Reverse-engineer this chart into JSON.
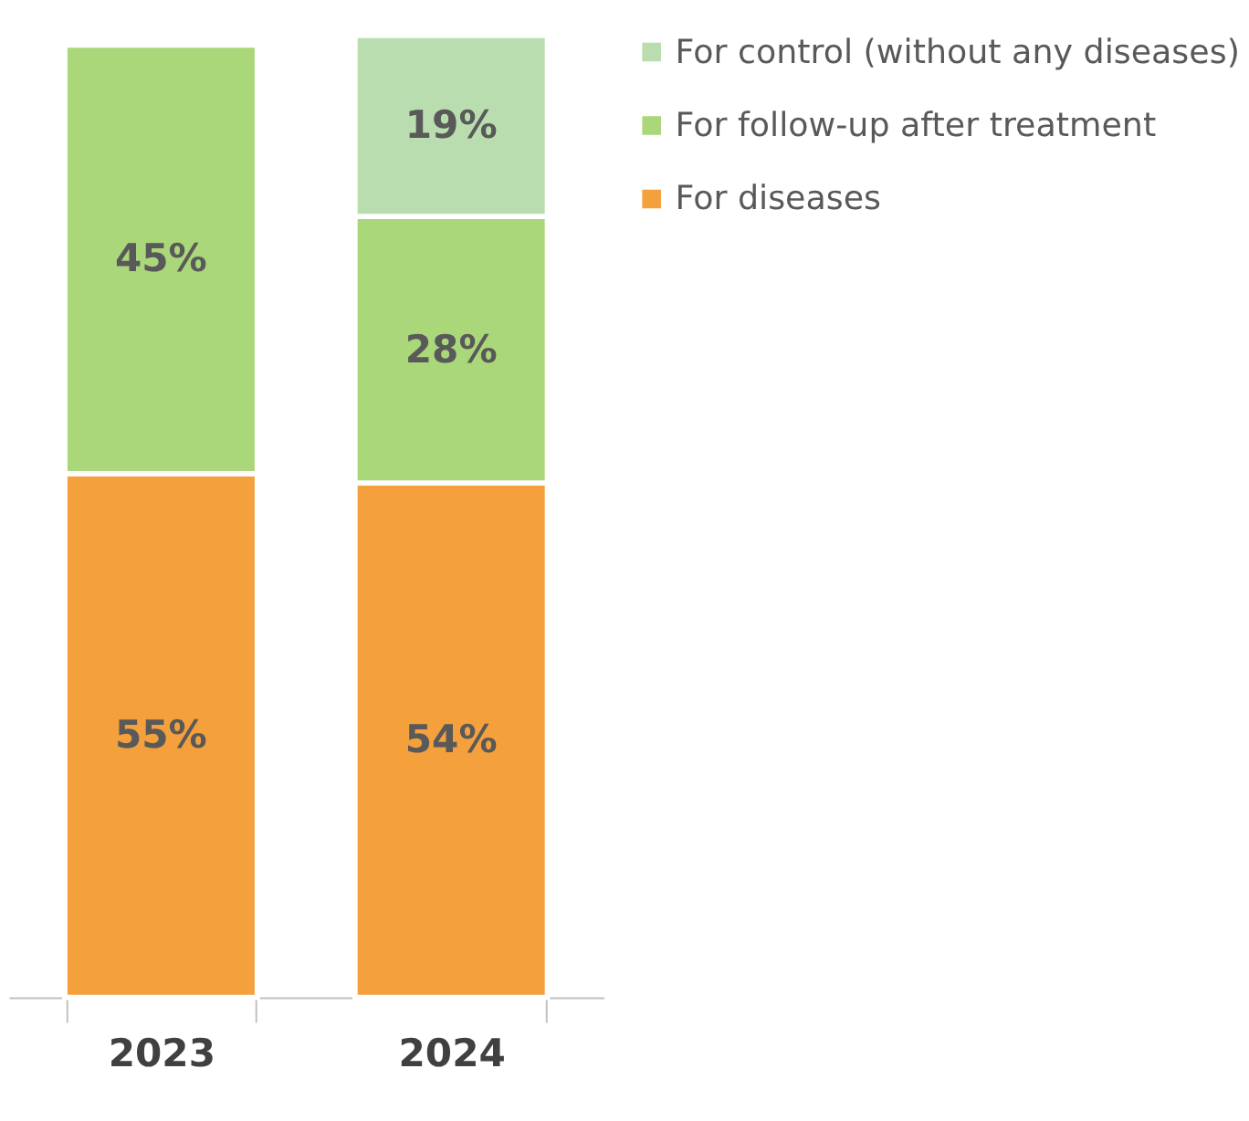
{
  "chart_data": {
    "type": "bar",
    "stacked": true,
    "categories": [
      "2023",
      "2024"
    ],
    "series": [
      {
        "name": "For diseases",
        "color": "#f4a03c",
        "values": [
          55,
          54
        ],
        "value_labels": [
          "55%",
          "54%"
        ]
      },
      {
        "name": "For follow-up after treatment",
        "color": "#a9d77a",
        "values": [
          45,
          28
        ],
        "value_labels": [
          "45%",
          "28%"
        ]
      },
      {
        "name": "For control (without any diseases)",
        "color": "#b9ddae",
        "values": [
          null,
          19
        ],
        "value_labels": [
          null,
          "19%"
        ]
      }
    ],
    "legend": "right",
    "grid": false
  }
}
